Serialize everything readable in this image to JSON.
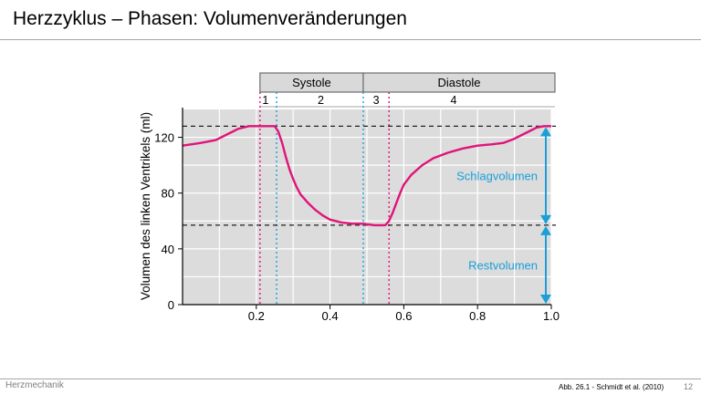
{
  "slide": {
    "title": "Herzzyklus – Phasen:  Volumenveränderungen",
    "footer_left": "Herzmechanik",
    "source": "Abb. 26.1 -  Schmidt et al. (2010)",
    "page_number": "12"
  },
  "chart_data": {
    "type": "line",
    "title": "",
    "xlabel": "",
    "ylabel": "Volumen des linken Ventrikels (ml)",
    "xlim": [
      0,
      1.0
    ],
    "ylim": [
      0,
      140
    ],
    "x_ticks": [
      0.2,
      0.4,
      0.6,
      0.8,
      1.0
    ],
    "x_tick_labels": [
      "0.2",
      "0.4",
      "0.6",
      "0.8",
      "1.0"
    ],
    "y_ticks": [
      0,
      40,
      80,
      120
    ],
    "y_tick_labels": [
      "0",
      "40",
      "80",
      "120"
    ],
    "grid": true,
    "series": [
      {
        "color": "#e0147a",
        "x": [
          0,
          0.05,
          0.09,
          0.12,
          0.15,
          0.18,
          0.2,
          0.22,
          0.25,
          0.26,
          0.27,
          0.28,
          0.29,
          0.3,
          0.31,
          0.32,
          0.34,
          0.36,
          0.38,
          0.4,
          0.43,
          0.46,
          0.49,
          0.52,
          0.55,
          0.56,
          0.57,
          0.58,
          0.59,
          0.6,
          0.62,
          0.65,
          0.68,
          0.72,
          0.76,
          0.8,
          0.84,
          0.87,
          0.9,
          0.93,
          0.96,
          0.98,
          1.0
        ],
        "y": [
          114,
          116,
          118,
          122,
          126,
          128,
          128,
          128,
          128,
          124,
          116,
          106,
          97,
          90,
          84,
          79,
          73,
          68,
          64,
          61,
          59,
          58,
          58,
          57,
          57,
          60,
          66,
          73,
          80,
          86,
          93,
          100,
          105,
          109,
          112,
          114,
          115,
          116,
          119,
          123,
          127,
          128,
          128
        ]
      }
    ],
    "phase_header": [
      {
        "label": "Systole",
        "x_start": 0.21,
        "x_end": 0.49
      },
      {
        "label": "Diastole",
        "x_start": 0.49,
        "x_end": 1.0
      }
    ],
    "phase_numbers": [
      {
        "label": "1",
        "x": 0.225
      },
      {
        "label": "2",
        "x": 0.375
      },
      {
        "label": "3",
        "x": 0.525
      },
      {
        "label": "4",
        "x": 0.735
      }
    ],
    "phase_boundaries": [
      {
        "x": 0.21,
        "color": "#e0147a"
      },
      {
        "x": 0.255,
        "color": "#1aa0d8"
      },
      {
        "x": 0.49,
        "color": "#1aa0d8"
      },
      {
        "x": 0.56,
        "color": "#e0147a"
      }
    ],
    "reference_lines": [
      128,
      57
    ],
    "annotations": [
      {
        "label": "Schlagvolumen",
        "from": 57,
        "to": 128,
        "color": "#1aa0d8"
      },
      {
        "label": "Restvolumen",
        "from": 0,
        "to": 57,
        "color": "#1aa0d8"
      }
    ]
  }
}
